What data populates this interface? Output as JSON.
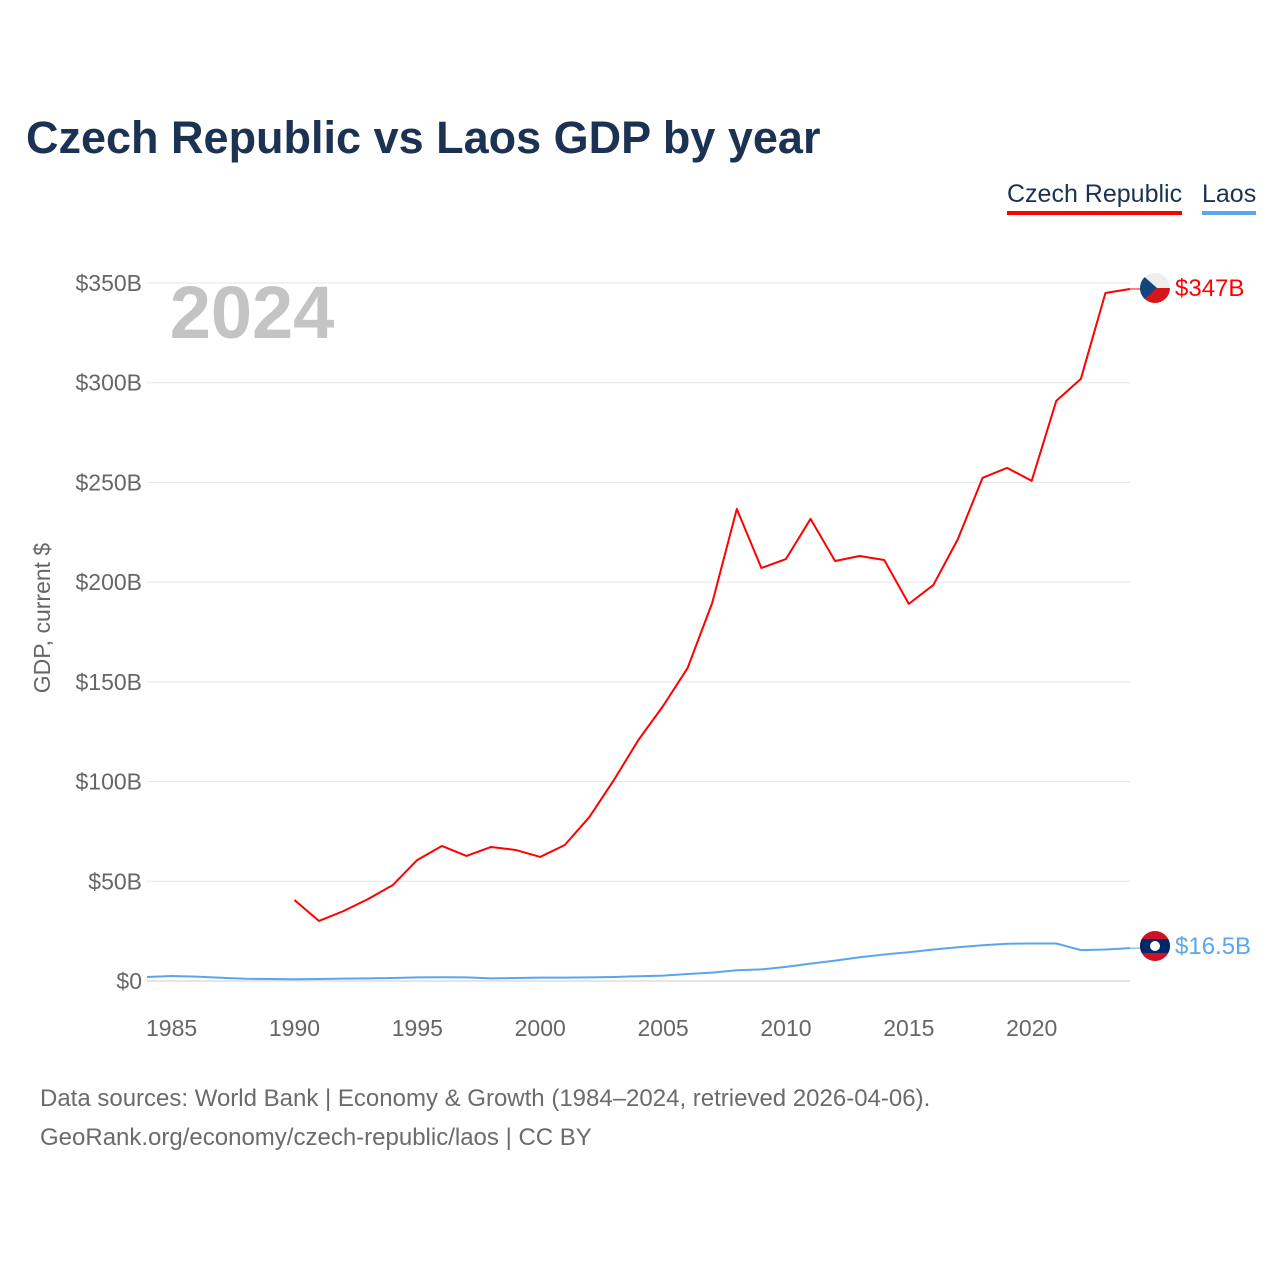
{
  "chart_data": {
    "type": "line",
    "title": "Czech Republic vs Laos GDP by year",
    "xlabel": "",
    "ylabel": "GDP, current $",
    "xlim": [
      1984,
      2024
    ],
    "ylim": [
      0,
      350
    ],
    "x_ticks": [
      1985,
      1990,
      1995,
      2000,
      2005,
      2010,
      2015,
      2020
    ],
    "x_tick_labels": [
      "1985",
      "1990",
      "1995",
      "2000",
      "2005",
      "2010",
      "2015",
      "2020"
    ],
    "y_ticks": [
      0,
      50,
      100,
      150,
      200,
      250,
      300,
      350
    ],
    "y_tick_labels": [
      "$0",
      "$50B",
      "$100B",
      "$150B",
      "$200B",
      "$250B",
      "$300B",
      "$350B"
    ],
    "grid": true,
    "legend_position": "top-right",
    "year_overlay": "2024",
    "series": [
      {
        "name": "Czech Republic",
        "color": "#ff0000",
        "end_label": "$347B",
        "x": [
          1990,
          1991,
          1992,
          1993,
          1994,
          1995,
          1996,
          1997,
          1998,
          1999,
          2000,
          2001,
          2002,
          2003,
          2004,
          2005,
          2006,
          2007,
          2008,
          2009,
          2010,
          2011,
          2012,
          2013,
          2014,
          2015,
          2016,
          2017,
          2018,
          2019,
          2020,
          2021,
          2022,
          2023,
          2024
        ],
        "values": [
          40.6,
          30.1,
          35.1,
          41.1,
          48.1,
          60.7,
          67.7,
          62.7,
          67.2,
          65.7,
          62.2,
          68.2,
          82.2,
          100.8,
          120.9,
          137.9,
          157.0,
          189.6,
          236.7,
          207.1,
          211.6,
          231.7,
          210.6,
          213.1,
          211.1,
          189.1,
          198.6,
          221.7,
          252.3,
          257.3,
          250.8,
          290.9,
          301.9,
          345.0,
          347.0
        ]
      },
      {
        "name": "Laos",
        "color": "#5aa6ee",
        "end_label": "$16.5B",
        "x": [
          1984,
          1985,
          1986,
          1987,
          1988,
          1989,
          1990,
          1991,
          1992,
          1993,
          1994,
          1995,
          1996,
          1997,
          1998,
          1999,
          2000,
          2001,
          2002,
          2003,
          2004,
          2005,
          2006,
          2007,
          2008,
          2009,
          2010,
          2011,
          2012,
          2013,
          2014,
          2015,
          2016,
          2017,
          2018,
          2019,
          2020,
          2021,
          2022,
          2023,
          2024
        ],
        "values": [
          2.0,
          2.5,
          2.2,
          1.6,
          1.1,
          1.0,
          0.9,
          1.0,
          1.2,
          1.3,
          1.5,
          1.8,
          1.9,
          1.8,
          1.3,
          1.5,
          1.7,
          1.7,
          1.8,
          2.0,
          2.4,
          2.7,
          3.5,
          4.2,
          5.4,
          5.8,
          7.1,
          8.7,
          10.2,
          11.9,
          13.3,
          14.4,
          15.8,
          16.9,
          17.9,
          18.7,
          18.8,
          18.8,
          15.5,
          15.8,
          16.5
        ]
      }
    ]
  },
  "footer": {
    "line1": "Data sources: World Bank | Economy & Growth (1984–2024, retrieved 2026-04-06).",
    "line2": "GeoRank.org/economy/czech-republic/laos | CC BY"
  }
}
